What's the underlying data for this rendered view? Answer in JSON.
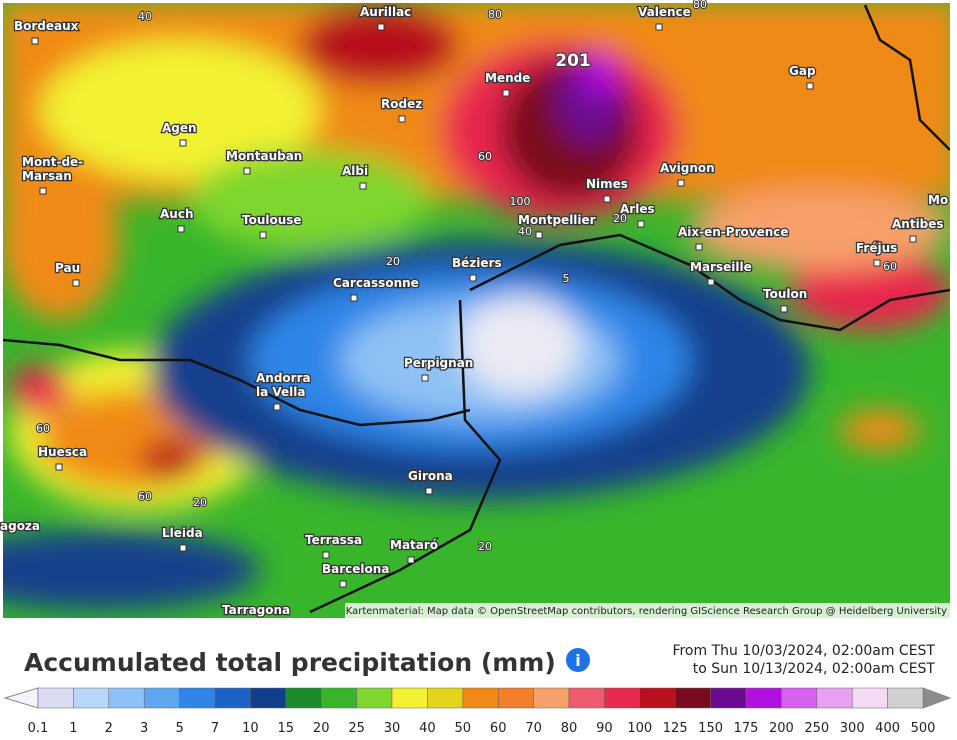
{
  "map": {
    "max_label": 201,
    "cities": [
      {
        "lines": [
          "Bordeaux"
        ]
      },
      {
        "lines": [
          "Aurillac"
        ]
      },
      {
        "lines": [
          "Valence"
        ]
      },
      {
        "lines": [
          "Mende"
        ]
      },
      {
        "lines": [
          "Gap"
        ]
      },
      {
        "lines": [
          "Rodez"
        ]
      },
      {
        "lines": [
          "Agen"
        ]
      },
      {
        "lines": [
          "Mont-de-",
          "Marsan"
        ]
      },
      {
        "lines": [
          "Montauban"
        ]
      },
      {
        "lines": [
          "Albi"
        ]
      },
      {
        "lines": [
          "Nimes"
        ]
      },
      {
        "lines": [
          "Avignon"
        ]
      },
      {
        "lines": [
          "Auch"
        ]
      },
      {
        "lines": [
          "Toulouse"
        ]
      },
      {
        "lines": [
          "Montpellier"
        ]
      },
      {
        "lines": [
          "Arles"
        ]
      },
      {
        "lines": [
          "Aix-en-Provence"
        ]
      },
      {
        "lines": [
          "Antibes"
        ]
      },
      {
        "lines": [
          "Fréjus"
        ]
      },
      {
        "lines": [
          "Pau"
        ]
      },
      {
        "lines": [
          "Béziers"
        ]
      },
      {
        "lines": [
          "Marseille"
        ]
      },
      {
        "lines": [
          "Carcassonne"
        ]
      },
      {
        "lines": [
          "Toulon"
        ]
      },
      {
        "lines": [
          "Perpignan"
        ]
      },
      {
        "lines": [
          "Andorra",
          "la Vella"
        ]
      },
      {
        "lines": [
          "Huesca"
        ]
      },
      {
        "lines": [
          "Girona"
        ]
      },
      {
        "lines": [
          "Lleida"
        ]
      },
      {
        "lines": [
          "Terrassa"
        ]
      },
      {
        "lines": [
          "Mataró"
        ]
      },
      {
        "lines": [
          "Barcelona"
        ]
      },
      {
        "lines": [
          "Tarragona"
        ]
      },
      {
        "lines": [
          "agoza"
        ]
      },
      {
        "lines": [
          "Mo"
        ]
      }
    ],
    "contour_labels": [
      40,
      80,
      80,
      60,
      100,
      40,
      20,
      20,
      5,
      60,
      60,
      60,
      20,
      20
    ],
    "attribution": "Kartenmaterial: Map data © OpenStreetMap contributors, rendering GIScience Research Group @ Heidelberg University"
  },
  "legend": {
    "title": "Accumulated total precipitation (mm)",
    "period": [
      "From Thu 10/03/2024, 02:00am CEST",
      "to Sun 10/13/2024, 02:00am CEST"
    ],
    "labels": [
      0.1,
      1,
      2,
      3,
      5,
      7,
      10,
      15,
      20,
      25,
      30,
      40,
      50,
      60,
      70,
      80,
      90,
      100,
      125,
      150,
      175,
      200,
      250,
      300,
      400,
      500
    ],
    "colors": [
      "#dadcf2",
      "#b9d5f7",
      "#8ec1f5",
      "#5fa6f0",
      "#2f86e8",
      "#1c63c8",
      "#123f8c",
      "#1a8a2a",
      "#39b52c",
      "#7fd62e",
      "#f2f230",
      "#e2d51a",
      "#f08a14",
      "#f27d2a",
      "#f7a06a",
      "#f05a6e",
      "#e8284e",
      "#b8101e",
      "#7a0a1e",
      "#6a0a90",
      "#b010e0",
      "#d860f0",
      "#e8a0f0",
      "#f4daf4",
      "#d0d0d0"
    ],
    "arrow_colors": [
      "#f4f4fa",
      "#8c8c8c"
    ]
  }
}
